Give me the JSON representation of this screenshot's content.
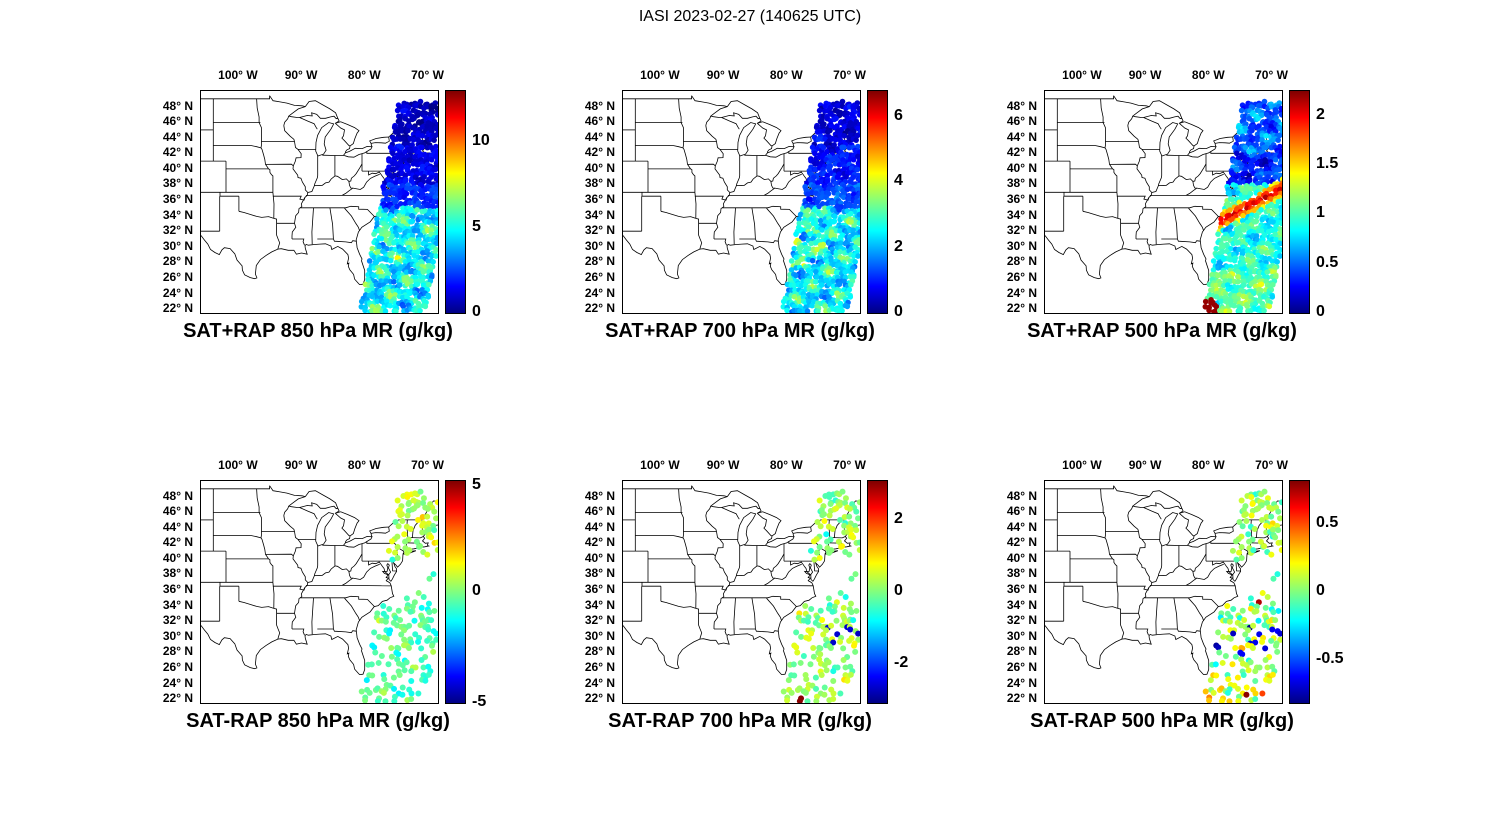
{
  "figure": {
    "title": "IASI 2023-02-27 (140625 UTC)"
  },
  "axes": {
    "lon_range": [
      -106,
      -68.5
    ],
    "lat_range": [
      21.5,
      50
    ],
    "lon_ticks": [
      {
        "value": -100,
        "label": "100° W"
      },
      {
        "value": -90,
        "label": "90° W"
      },
      {
        "value": -80,
        "label": "80° W"
      },
      {
        "value": -70,
        "label": "70° W"
      }
    ],
    "lat_ticks": [
      {
        "value": 22,
        "label": "22° N"
      },
      {
        "value": 24,
        "label": "24° N"
      },
      {
        "value": 26,
        "label": "26° N"
      },
      {
        "value": 28,
        "label": "28° N"
      },
      {
        "value": 30,
        "label": "30° N"
      },
      {
        "value": 32,
        "label": "32° N"
      },
      {
        "value": 34,
        "label": "34° N"
      },
      {
        "value": 36,
        "label": "36° N"
      },
      {
        "value": 38,
        "label": "38° N"
      },
      {
        "value": 40,
        "label": "40° N"
      },
      {
        "value": 42,
        "label": "42° N"
      },
      {
        "value": 44,
        "label": "44° N"
      },
      {
        "value": 46,
        "label": "46° N"
      },
      {
        "value": 48,
        "label": "48° N"
      }
    ]
  },
  "chart_data": [
    {
      "type": "scatter",
      "panel": "top-left",
      "title": "SAT+RAP 850 hPa MR (g/kg)",
      "product": "SAT+RAP",
      "level_hPa": 850,
      "variable": "water vapor mixing ratio",
      "units": "g/kg",
      "colormap": "jet",
      "colorbar_ticks": [
        0,
        5,
        10
      ],
      "colorbar_range": [
        0,
        13
      ],
      "swath": {
        "description": "IASI satellite overpass swath, NNE-SSW band over the US East Coast and western Atlantic",
        "lat_extent": [
          21.8,
          48.4
        ],
        "lon_center_north": -69.5,
        "lon_center_south": -75.6,
        "half_width_deg": 5,
        "values_summary": "0.5-2 g/kg (dark blue) north of 38N over New England; 3-8 g/kg (green/yellow) south of 34N; local maxima ~9-10 g/kg (orange) near 29-33N"
      }
    },
    {
      "type": "scatter",
      "panel": "top-center",
      "title": "SAT+RAP 700 hPa MR (g/kg)",
      "product": "SAT+RAP",
      "level_hPa": 700,
      "variable": "water vapor mixing ratio",
      "units": "g/kg",
      "colormap": "jet",
      "colorbar_ticks": [
        0,
        2,
        4,
        6
      ],
      "colorbar_range": [
        0,
        6.8
      ],
      "swath": {
        "description": "Same IASI swath as 850 hPa panel",
        "lat_extent": [
          21.8,
          48.4
        ],
        "lon_center_north": -69.5,
        "lon_center_south": -75.6,
        "half_width_deg": 5,
        "values_summary": "0.3-1 g/kg north of 38N; 1.5-3 g/kg south of 35N with yellow/orange streaks up to ~5 g/kg near 28-33N"
      }
    },
    {
      "type": "scatter",
      "panel": "top-right",
      "title": "SAT+RAP 500 hPa MR (g/kg)",
      "product": "SAT+RAP",
      "level_hPa": 500,
      "variable": "water vapor mixing ratio",
      "units": "g/kg",
      "colormap": "jet",
      "colorbar_ticks": [
        0,
        0.5,
        1,
        1.5,
        2
      ],
      "colorbar_range": [
        0,
        2.25
      ],
      "swath": {
        "description": "Same IASI swath as 850 hPa panel",
        "lat_extent": [
          21.8,
          48.4
        ],
        "lon_center_north": -69.5,
        "lon_center_south": -75.6,
        "half_width_deg": 5,
        "values_summary": "0.2-0.6 g/kg (blue/cyan) north of 38N; pronounced red diagonal moist band ~2-2.2 g/kg near 33-37N; 0.7-1.3 g/kg (cyan/green) to the south"
      }
    },
    {
      "type": "scatter",
      "panel": "bottom-left",
      "title": "SAT-RAP 850 hPa MR (g/kg)",
      "product": "SAT-RAP",
      "level_hPa": 850,
      "variable": "mixing ratio difference (satellite minus RAP)",
      "units": "g/kg",
      "colormap": "jet",
      "colorbar_ticks": [
        -5,
        0,
        5
      ],
      "colorbar_range": [
        -5,
        5
      ],
      "swath": {
        "description": "QC-passed subset of the swath: clusters north of 41N and south of 34N, sparse in between",
        "lat_extent": [
          21.8,
          48.4
        ],
        "lon_center_north": -69.5,
        "lon_center_south": -75.6,
        "half_width_deg": 5,
        "values_summary": "differences mostly -2 to +2 g/kg; green/yellow (0 to +1.5) over New England, cyan/green (-1.5 to +0.5) in the southern cluster"
      }
    },
    {
      "type": "scatter",
      "panel": "bottom-center",
      "title": "SAT-RAP 700 hPa MR (g/kg)",
      "product": "SAT-RAP",
      "level_hPa": 700,
      "variable": "mixing ratio difference (satellite minus RAP)",
      "units": "g/kg",
      "colormap": "jet",
      "colorbar_ticks": [
        -2,
        0,
        2
      ],
      "colorbar_range": [
        -3.1,
        3.1
      ],
      "swath": {
        "description": "QC-passed subset of the swath: clusters north of 41N and south of 34N, sparse in between",
        "lat_extent": [
          21.8,
          48.4
        ],
        "lon_center_north": -69.5,
        "lon_center_south": -75.6,
        "half_width_deg": 5,
        "values_summary": "mostly near 0 (green); scattered dark-blue dry differences ~-2.5 g/kg near 29-31N; single red outlier ~+3 g/kg near 22.5N"
      }
    },
    {
      "type": "scatter",
      "panel": "bottom-right",
      "title": "SAT-RAP 500 hPa MR (g/kg)",
      "product": "SAT-RAP",
      "level_hPa": 500,
      "variable": "mixing ratio difference (satellite minus RAP)",
      "units": "g/kg",
      "colormap": "jet",
      "colorbar_ticks": [
        -0.5,
        0,
        0.5
      ],
      "colorbar_range": [
        -0.82,
        0.82
      ],
      "swath": {
        "description": "QC-passed subset of the swath: clusters north of 41N and south of 34N, sparse in between",
        "lat_extent": [
          21.8,
          48.4
        ],
        "lon_center_north": -69.5,
        "lon_center_south": -75.6,
        "half_width_deg": 5,
        "values_summary": "mostly -0.2 to +0.2 g/kg (cyan/green); dark-blue cluster ~-0.75 near 28-31N; orange dots ~+0.6 near 35-36N; warm (yellow/orange) values and a red dot near the southern end"
      }
    }
  ]
}
